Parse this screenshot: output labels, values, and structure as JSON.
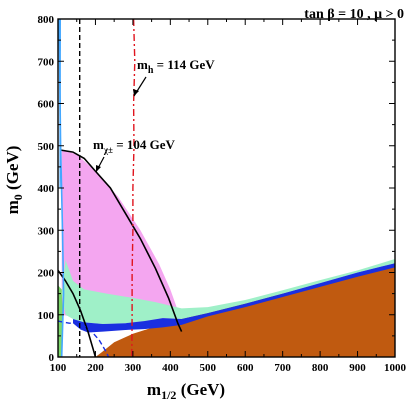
{
  "chart_data": {
    "type": "area",
    "header": {
      "text": "tan β = 10 ,  μ > 0"
    },
    "xlabel": {
      "main": "m",
      "sub": "1/2",
      "unit": " (GeV)"
    },
    "ylabel": {
      "main": "m",
      "sub": "0",
      "unit": " (GeV)"
    },
    "xlim": [
      100,
      1000
    ],
    "ylim": [
      0,
      800
    ],
    "xticks": [
      100,
      200,
      300,
      400,
      500,
      600,
      700,
      800,
      900,
      1000
    ],
    "yticks": [
      0,
      100,
      200,
      300,
      400,
      500,
      600,
      700,
      800
    ],
    "grid": false,
    "annotations": {
      "mh": {
        "main": "m",
        "sub": "h",
        "rest": " = 114 GeV"
      },
      "mchi": {
        "main": "m",
        "sub": "χ±",
        "rest": " = 104 GeV"
      }
    },
    "regions": [
      {
        "id": "charged-lsp",
        "color": "#c05a10",
        "points": [
          [
            200,
            0
          ],
          [
            1000,
            0
          ],
          [
            1000,
            222
          ],
          [
            920,
            200
          ],
          [
            820,
            178
          ],
          [
            700,
            150
          ],
          [
            600,
            127
          ],
          [
            500,
            105
          ],
          [
            420,
            88
          ],
          [
            360,
            72
          ],
          [
            300,
            55
          ],
          [
            250,
            35
          ],
          [
            215,
            10
          ],
          [
            200,
            0
          ]
        ]
      },
      {
        "id": "g-2-region",
        "color": "#f4a6f0",
        "points": [
          [
            110,
            490
          ],
          [
            150,
            480
          ],
          [
            200,
            440
          ],
          [
            260,
            380
          ],
          [
            320,
            300
          ],
          [
            370,
            220
          ],
          [
            400,
            160
          ],
          [
            420,
            110
          ],
          [
            430,
            80
          ],
          [
            330,
            80
          ],
          [
            250,
            85
          ],
          [
            180,
            95
          ],
          [
            140,
            95
          ],
          [
            110,
            100
          ],
          [
            110,
            490
          ]
        ]
      },
      {
        "id": "bsg-region",
        "color": "#7dd96b",
        "points": [
          [
            100,
            0
          ],
          [
            110,
            0
          ],
          [
            113,
            100
          ],
          [
            110,
            160
          ],
          [
            100,
            170
          ],
          [
            100,
            0
          ]
        ]
      },
      {
        "id": "wmap-relic-band",
        "color": "#9ff0c8",
        "points": [
          [
            120,
            230
          ],
          [
            140,
            180
          ],
          [
            170,
            160
          ],
          [
            230,
            150
          ],
          [
            300,
            140
          ],
          [
            360,
            130
          ],
          [
            430,
            115
          ],
          [
            500,
            118
          ],
          [
            600,
            135
          ],
          [
            700,
            158
          ],
          [
            800,
            182
          ],
          [
            900,
            205
          ],
          [
            1000,
            232
          ],
          [
            1000,
            222
          ],
          [
            900,
            200
          ],
          [
            800,
            175
          ],
          [
            700,
            150
          ],
          [
            600,
            126
          ],
          [
            500,
            104
          ],
          [
            430,
            90
          ],
          [
            380,
            92
          ],
          [
            330,
            85
          ],
          [
            280,
            80
          ],
          [
            220,
            78
          ],
          [
            170,
            82
          ],
          [
            140,
            90
          ],
          [
            120,
            100
          ],
          [
            110,
            150
          ],
          [
            120,
            230
          ]
        ]
      },
      {
        "id": "cdm-strip",
        "color": "#1a2fe0",
        "points": [
          [
            140,
            90
          ],
          [
            170,
            82
          ],
          [
            220,
            78
          ],
          [
            280,
            80
          ],
          [
            330,
            85
          ],
          [
            380,
            92
          ],
          [
            430,
            90
          ],
          [
            500,
            104
          ],
          [
            600,
            126
          ],
          [
            700,
            150
          ],
          [
            800,
            175
          ],
          [
            900,
            200
          ],
          [
            1000,
            222
          ],
          [
            1000,
            212
          ],
          [
            900,
            190
          ],
          [
            800,
            166
          ],
          [
            700,
            142
          ],
          [
            600,
            118
          ],
          [
            500,
            96
          ],
          [
            430,
            76
          ],
          [
            380,
            70
          ],
          [
            330,
            66
          ],
          [
            280,
            64
          ],
          [
            220,
            60
          ],
          [
            180,
            58
          ],
          [
            160,
            65
          ],
          [
            140,
            80
          ],
          [
            140,
            90
          ]
        ]
      },
      {
        "id": "focus-point-strip",
        "color": "#44a8ff",
        "points": [
          [
            103,
            800
          ],
          [
            108,
            800
          ],
          [
            107,
            400
          ],
          [
            104,
            400
          ],
          [
            103,
            800
          ]
        ]
      }
    ],
    "lines": [
      {
        "id": "chargino-mass-curve",
        "color": "#000000",
        "style": "solid",
        "width": 1.6,
        "points": [
          [
            106,
            490
          ],
          [
            140,
            485
          ],
          [
            170,
            470
          ],
          [
            200,
            440
          ],
          [
            240,
            400
          ],
          [
            280,
            340
          ],
          [
            320,
            280
          ],
          [
            360,
            210
          ],
          [
            395,
            140
          ],
          [
            420,
            80
          ],
          [
            430,
            60
          ]
        ]
      },
      {
        "id": "lower-black-curve",
        "color": "#000000",
        "style": "solid",
        "width": 1.6,
        "points": [
          [
            100,
            205
          ],
          [
            120,
            180
          ],
          [
            140,
            150
          ],
          [
            160,
            110
          ],
          [
            180,
            60
          ],
          [
            195,
            15
          ],
          [
            200,
            0
          ]
        ]
      },
      {
        "id": "higgs-mass-line",
        "color": "#e0141e",
        "style": "dashdot",
        "width": 1.4,
        "points": [
          [
            302,
            800
          ],
          [
            305,
            700
          ],
          [
            302,
            600
          ],
          [
            303,
            500
          ],
          [
            300,
            400
          ],
          [
            300,
            300
          ],
          [
            298,
            200
          ],
          [
            298,
            100
          ],
          [
            297,
            0
          ]
        ]
      },
      {
        "id": "black-dashed-line",
        "color": "#000000",
        "style": "dashed",
        "width": 1.4,
        "points": [
          [
            158,
            800
          ],
          [
            158,
            600
          ],
          [
            158,
            400
          ],
          [
            158,
            200
          ],
          [
            158,
            0
          ]
        ]
      },
      {
        "id": "blue-dashed-curve",
        "color": "#1a2fe0",
        "style": "dashed",
        "width": 1.4,
        "points": [
          [
            100,
            85
          ],
          [
            130,
            80
          ],
          [
            160,
            80
          ],
          [
            190,
            60
          ],
          [
            210,
            40
          ],
          [
            230,
            10
          ],
          [
            235,
            0
          ]
        ]
      },
      {
        "id": "cyan-edge-line",
        "color": "#44a8ff",
        "style": "solid",
        "width": 1.6,
        "points": [
          [
            103,
            800
          ],
          [
            107,
            500
          ],
          [
            112,
            300
          ],
          [
            115,
            150
          ],
          [
            110,
            0
          ]
        ]
      }
    ]
  }
}
